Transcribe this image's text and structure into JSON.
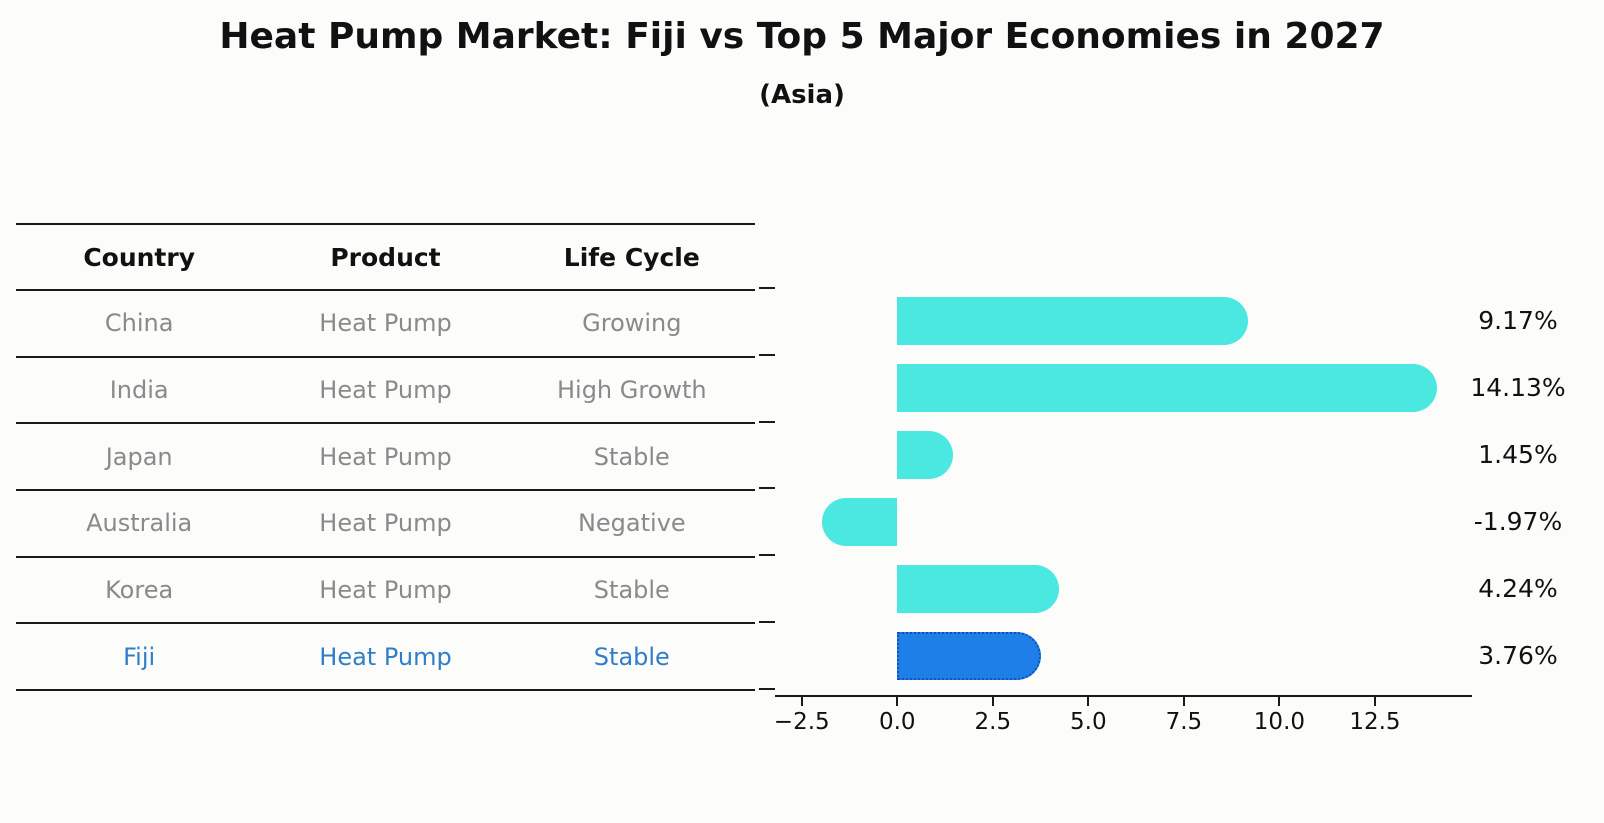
{
  "title": "Heat Pump Market: Fiji vs Top 5 Major Economies in 2027",
  "subtitle": "(Asia)",
  "colors": {
    "bar_default": "#4ae8e0",
    "bar_highlight": "#1e7fe8",
    "bar_highlight_border": "#1550b8",
    "table_text_gray": "#8a8a8a",
    "highlight_text_blue": "#2e7ec9",
    "axis_black": "#1a1a1a",
    "background": "#fcfcfa"
  },
  "table": {
    "headers": [
      "Country",
      "Product",
      "Life Cycle"
    ],
    "rows": [
      {
        "country": "China",
        "product": "Heat Pump",
        "life_cycle": "Growing",
        "highlight": false
      },
      {
        "country": "India",
        "product": "Heat Pump",
        "life_cycle": "High Growth",
        "highlight": false
      },
      {
        "country": "Japan",
        "product": "Heat Pump",
        "life_cycle": "Stable",
        "highlight": false
      },
      {
        "country": "Australia",
        "product": "Heat Pump",
        "life_cycle": "Negative",
        "highlight": false
      },
      {
        "country": "Korea",
        "product": "Heat Pump",
        "life_cycle": "Stable",
        "highlight": false
      },
      {
        "country": "Fiji",
        "product": "Heat Pump",
        "life_cycle": "Stable",
        "highlight": true
      }
    ]
  },
  "chart_data": {
    "type": "bar",
    "orientation": "horizontal",
    "title": "Heat Pump Market: Fiji vs Top 5 Major Economies in 2027 (Asia)",
    "categories": [
      "China",
      "India",
      "Japan",
      "Australia",
      "Korea",
      "Fiji"
    ],
    "values": [
      9.17,
      14.13,
      1.45,
      -1.97,
      4.24,
      3.76
    ],
    "value_labels": [
      "9.17%",
      "14.13%",
      "1.45%",
      "-1.97%",
      "4.24%",
      "3.76%"
    ],
    "highlight_index": 5,
    "xlim": [
      -3.2,
      15.04
    ],
    "x_ticks": [
      -2.5,
      0.0,
      2.5,
      5.0,
      7.5,
      10.0,
      12.5
    ],
    "x_tick_labels": [
      "−2.5",
      "0.0",
      "2.5",
      "5.0",
      "7.5",
      "10.0",
      "12.5"
    ],
    "y_tick_count": 7,
    "grid": false,
    "legend": false
  }
}
